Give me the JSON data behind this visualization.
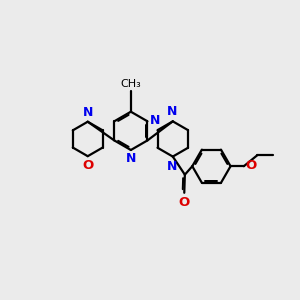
{
  "background_color": "#ebebeb",
  "bond_color": "#000000",
  "n_color": "#0000ee",
  "o_color": "#dd0000",
  "lw": 1.6,
  "doffset": 0.055,
  "fig_width": 3.0,
  "fig_height": 3.0,
  "xlim": [
    0,
    10
  ],
  "ylim": [
    0,
    10
  ]
}
